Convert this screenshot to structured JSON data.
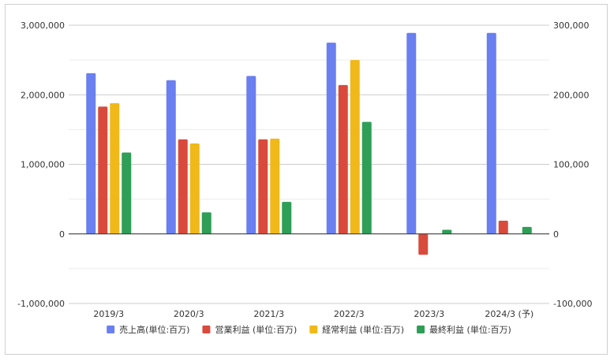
{
  "chart_data": {
    "type": "bar",
    "categories": [
      "2019/3",
      "2020/3",
      "2021/3",
      "2022/3",
      "2023/3",
      "2024/3 (予)"
    ],
    "series": [
      {
        "name": "売上高(単位:百万)",
        "axis": "left",
        "color": "#6a7ff0",
        "values": [
          2310000,
          2210000,
          2270000,
          2750000,
          2890000,
          2890000
        ]
      },
      {
        "name": "営業利益 (単位:百万)",
        "axis": "right",
        "color": "#d94a3d",
        "values": [
          183000,
          136000,
          136000,
          214000,
          -30000,
          19000
        ]
      },
      {
        "name": "経常利益 (単位:百万)",
        "axis": "right",
        "color": "#f0b819",
        "values": [
          188000,
          130000,
          137000,
          250000,
          null,
          null
        ]
      },
      {
        "name": "最終利益 (単位:百万)",
        "axis": "right",
        "color": "#2f9e57",
        "values": [
          117000,
          31000,
          46000,
          161000,
          6000,
          10000
        ]
      }
    ],
    "left_axis": {
      "ylim": [
        -1000000,
        3000000
      ],
      "ticks": [
        "3,000,000",
        "2,000,000",
        "1,000,000",
        "0",
        "-1,000,000"
      ]
    },
    "right_axis": {
      "ylim": [
        -100000,
        300000
      ],
      "ticks": [
        "300,000",
        "200,000",
        "100,000",
        "0",
        "-100,000"
      ]
    },
    "legend_position": "bottom",
    "grid": true
  }
}
